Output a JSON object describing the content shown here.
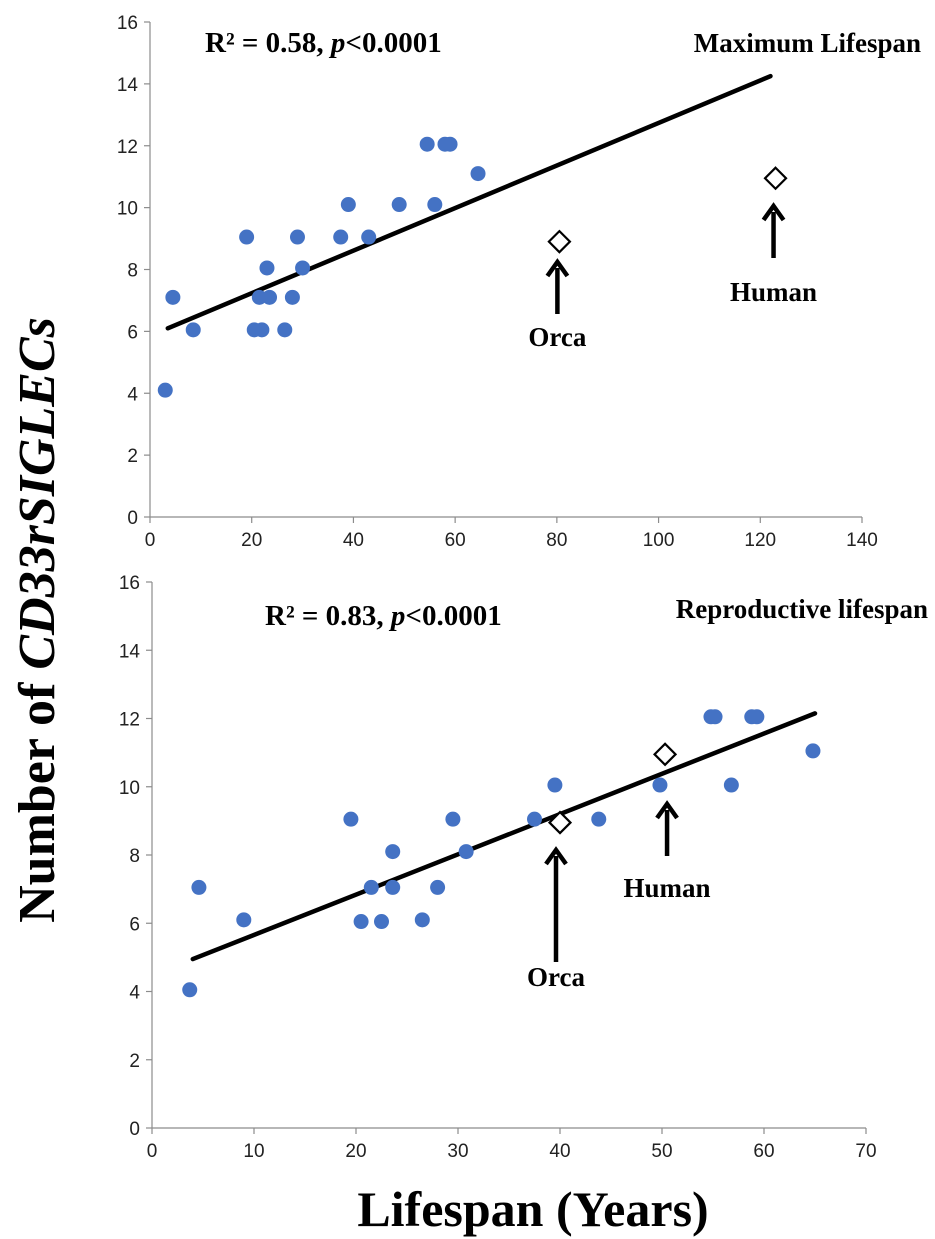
{
  "ylabel": {
    "prefix": "Number of ",
    "italic": "CD33rSIGLECs"
  },
  "xlabel": "Lifespan (Years)",
  "colors": {
    "points": "#4472C4",
    "fit": "#000000",
    "axis": "#8c8c8c"
  },
  "chart_data": [
    {
      "type": "scatter",
      "title": "Maximum Lifespan",
      "stat": {
        "r2": "R² = 0.58, ",
        "p_symbol": "p",
        "p_value": "<0.0001"
      },
      "xlim": [
        0,
        140
      ],
      "ylim": [
        0,
        16
      ],
      "xticks": [
        0,
        20,
        40,
        60,
        80,
        100,
        120,
        140
      ],
      "yticks": [
        0,
        2,
        4,
        6,
        8,
        10,
        12,
        14,
        16
      ],
      "grid": false,
      "points": [
        [
          3,
          4.1
        ],
        [
          4.5,
          7.1
        ],
        [
          8.5,
          6.05
        ],
        [
          19,
          9.05
        ],
        [
          20.5,
          6.05
        ],
        [
          21.5,
          7.1
        ],
        [
          22,
          6.05
        ],
        [
          23,
          8.05
        ],
        [
          23.5,
          7.1
        ],
        [
          26.5,
          6.05
        ],
        [
          28,
          7.1
        ],
        [
          29,
          9.05
        ],
        [
          30,
          8.05
        ],
        [
          37.5,
          9.05
        ],
        [
          39,
          10.1
        ],
        [
          43,
          9.05
        ],
        [
          49,
          10.1
        ],
        [
          54.5,
          12.05
        ],
        [
          56,
          10.1
        ],
        [
          58,
          12.05
        ],
        [
          59,
          12.05
        ],
        [
          64.5,
          11.1
        ]
      ],
      "fit": [
        [
          3.5,
          6.1
        ],
        [
          122,
          14.25
        ]
      ],
      "highlights": [
        {
          "label": "Orca",
          "x": 80.5,
          "y": 8.9
        },
        {
          "label": "Human",
          "x": 123,
          "y": 10.95
        }
      ]
    },
    {
      "type": "scatter",
      "title": "Reproductive lifespan",
      "stat": {
        "r2": "R² = 0.83, ",
        "p_symbol": "p",
        "p_value": "<0.0001"
      },
      "xlim": [
        0,
        70
      ],
      "ylim": [
        0,
        16
      ],
      "xticks": [
        0,
        10,
        20,
        30,
        40,
        50,
        60,
        70
      ],
      "yticks": [
        0,
        2,
        4,
        6,
        8,
        10,
        12,
        14,
        16
      ],
      "grid": false,
      "points": [
        [
          3.7,
          4.05
        ],
        [
          4.6,
          7.05
        ],
        [
          9,
          6.1
        ],
        [
          19.5,
          9.05
        ],
        [
          20.5,
          6.05
        ],
        [
          21.5,
          7.05
        ],
        [
          22.5,
          6.05
        ],
        [
          23.6,
          8.1
        ],
        [
          23.6,
          7.05
        ],
        [
          26.5,
          6.1
        ],
        [
          28,
          7.05
        ],
        [
          29.5,
          9.05
        ],
        [
          30.8,
          8.1
        ],
        [
          37.5,
          9.05
        ],
        [
          39.5,
          10.05
        ],
        [
          43.8,
          9.05
        ],
        [
          49.8,
          10.05
        ],
        [
          54.8,
          12.05
        ],
        [
          55.2,
          12.05
        ],
        [
          56.8,
          10.05
        ],
        [
          58.8,
          12.05
        ],
        [
          59.3,
          12.05
        ],
        [
          64.8,
          11.05
        ]
      ],
      "fit": [
        [
          4,
          4.95
        ],
        [
          65,
          12.15
        ]
      ],
      "highlights": [
        {
          "label": "Orca",
          "x": 40,
          "y": 8.95
        },
        {
          "label": "Human",
          "x": 50.3,
          "y": 10.95
        }
      ]
    }
  ]
}
